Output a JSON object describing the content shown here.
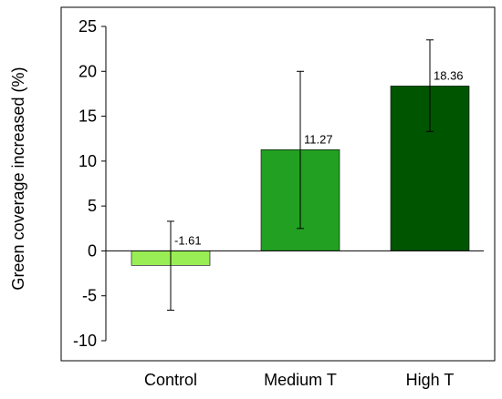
{
  "chart_data": {
    "type": "bar",
    "title": "",
    "xlabel": "",
    "ylabel": "Green coverage increased (%)",
    "categories": [
      "Control",
      "Medium T",
      "High T"
    ],
    "values": [
      -1.61,
      11.27,
      18.36
    ],
    "data_labels": [
      "-1.61",
      "11.27",
      "18.36"
    ],
    "error_bars": [
      {
        "low": -6.6,
        "high": 3.3
      },
      {
        "low": 2.5,
        "high": 20.0
      },
      {
        "low": 13.3,
        "high": 23.5
      }
    ],
    "bar_colors": [
      "#99ee55",
      "#22a022",
      "#005500"
    ],
    "ylim": [
      -10,
      25
    ],
    "yticks": [
      -10,
      -5,
      0,
      5,
      10,
      15,
      20,
      25
    ],
    "ytick_labels": [
      "-10",
      "-5",
      "0",
      "5",
      "10",
      "15",
      "20",
      "25"
    ],
    "grid": false,
    "legend": "none"
  }
}
